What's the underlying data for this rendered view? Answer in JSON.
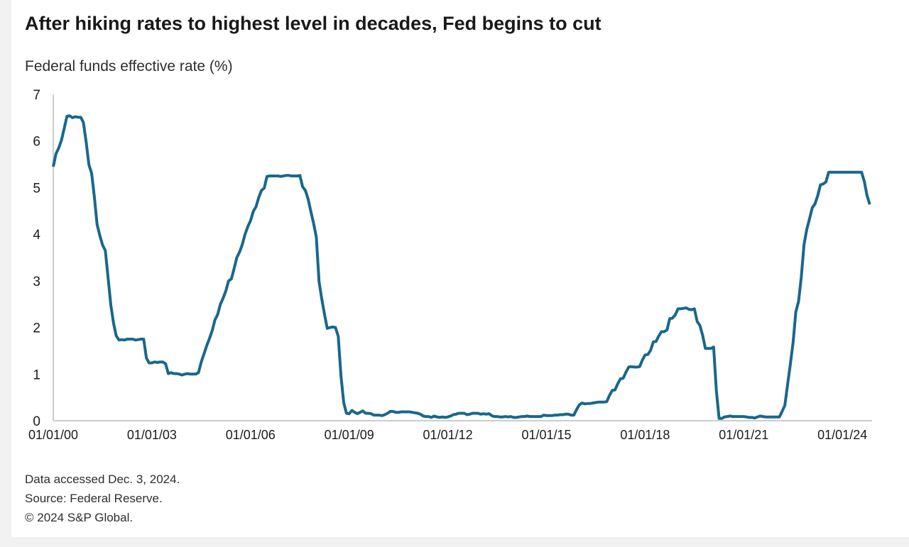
{
  "header": {
    "title": "After hiking rates to highest level in decades, Fed begins to cut",
    "subtitle": "Federal funds effective rate (%)"
  },
  "footer": {
    "line1": "Data accessed Dec. 3, 2024.",
    "line2": "Source: Federal Reserve.",
    "line3": "© 2024 S&P Global."
  },
  "chart_data": {
    "type": "line",
    "title": "After hiking rates to highest level in decades, Fed begins to cut",
    "ylabel": "Federal funds effective rate (%)",
    "xlabel": "",
    "grid": false,
    "legend": "none",
    "ylim": [
      0,
      7
    ],
    "yticks": [
      0,
      1,
      2,
      3,
      4,
      5,
      6,
      7
    ],
    "xticks": [
      "01/01/00",
      "01/01/03",
      "01/01/06",
      "01/01/09",
      "01/01/12",
      "01/01/15",
      "01/01/18",
      "01/01/21",
      "01/01/24"
    ],
    "xtick_years": [
      2000,
      2003,
      2006,
      2009,
      2012,
      2015,
      2018,
      2021,
      2024
    ],
    "x_range_years": [
      2000.0,
      2024.92
    ],
    "line_color": "#19678c",
    "axis_color": "#cccccc",
    "series": [
      {
        "name": "Federal funds effective rate (%)",
        "frequency": "monthly",
        "start": "2000-01",
        "end": "2024-11",
        "values": [
          5.45,
          5.73,
          5.85,
          6.02,
          6.27,
          6.53,
          6.54,
          6.5,
          6.52,
          6.51,
          6.51,
          6.4,
          5.98,
          5.49,
          5.31,
          4.8,
          4.21,
          3.97,
          3.77,
          3.65,
          3.07,
          2.49,
          2.09,
          1.82,
          1.73,
          1.74,
          1.73,
          1.75,
          1.75,
          1.75,
          1.73,
          1.74,
          1.75,
          1.75,
          1.34,
          1.24,
          1.24,
          1.26,
          1.25,
          1.26,
          1.26,
          1.22,
          1.01,
          1.03,
          1.01,
          1.01,
          1.0,
          0.98,
          1.0,
          1.01,
          1.0,
          1.0,
          1.0,
          1.03,
          1.26,
          1.43,
          1.61,
          1.76,
          1.93,
          2.16,
          2.28,
          2.5,
          2.63,
          2.79,
          3.0,
          3.04,
          3.26,
          3.5,
          3.62,
          3.78,
          4.0,
          4.16,
          4.29,
          4.49,
          4.59,
          4.79,
          4.94,
          4.99,
          5.24,
          5.25,
          5.25,
          5.25,
          5.25,
          5.24,
          5.25,
          5.26,
          5.26,
          5.25,
          5.25,
          5.25,
          5.26,
          5.02,
          4.94,
          4.76,
          4.49,
          4.24,
          3.94,
          2.98,
          2.61,
          2.28,
          1.98,
          2.0,
          2.01,
          2.0,
          1.81,
          0.97,
          0.39,
          0.16,
          0.15,
          0.22,
          0.18,
          0.15,
          0.18,
          0.21,
          0.16,
          0.16,
          0.15,
          0.12,
          0.12,
          0.12,
          0.11,
          0.13,
          0.16,
          0.2,
          0.2,
          0.18,
          0.18,
          0.19,
          0.19,
          0.19,
          0.19,
          0.18,
          0.17,
          0.16,
          0.14,
          0.1,
          0.09,
          0.09,
          0.07,
          0.1,
          0.08,
          0.07,
          0.08,
          0.07,
          0.08,
          0.1,
          0.13,
          0.14,
          0.16,
          0.16,
          0.16,
          0.13,
          0.14,
          0.16,
          0.16,
          0.16,
          0.14,
          0.15,
          0.14,
          0.15,
          0.11,
          0.09,
          0.09,
          0.08,
          0.08,
          0.09,
          0.08,
          0.09,
          0.07,
          0.07,
          0.08,
          0.09,
          0.09,
          0.1,
          0.09,
          0.09,
          0.09,
          0.09,
          0.09,
          0.12,
          0.11,
          0.11,
          0.11,
          0.12,
          0.12,
          0.13,
          0.13,
          0.14,
          0.14,
          0.12,
          0.12,
          0.24,
          0.34,
          0.38,
          0.36,
          0.37,
          0.37,
          0.38,
          0.39,
          0.4,
          0.4,
          0.4,
          0.41,
          0.54,
          0.65,
          0.66,
          0.79,
          0.9,
          0.91,
          1.04,
          1.15,
          1.16,
          1.15,
          1.15,
          1.16,
          1.3,
          1.41,
          1.42,
          1.51,
          1.69,
          1.7,
          1.82,
          1.91,
          1.91,
          1.95,
          2.19,
          2.2,
          2.27,
          2.4,
          2.4,
          2.41,
          2.42,
          2.39,
          2.38,
          2.4,
          2.13,
          2.04,
          1.83,
          1.55,
          1.55,
          1.55,
          1.58,
          0.65,
          0.05,
          0.05,
          0.08,
          0.09,
          0.1,
          0.09,
          0.09,
          0.09,
          0.09,
          0.09,
          0.08,
          0.07,
          0.07,
          0.06,
          0.08,
          0.1,
          0.09,
          0.08,
          0.08,
          0.08,
          0.08,
          0.08,
          0.08,
          0.2,
          0.33,
          0.77,
          1.21,
          1.68,
          2.33,
          2.56,
          3.08,
          3.78,
          4.1,
          4.33,
          4.57,
          4.65,
          4.83,
          5.06,
          5.08,
          5.12,
          5.33,
          5.33,
          5.33,
          5.33,
          5.33,
          5.33,
          5.33,
          5.33,
          5.33,
          5.33,
          5.33,
          5.33,
          5.33,
          5.13,
          4.83,
          4.64
        ]
      }
    ]
  }
}
